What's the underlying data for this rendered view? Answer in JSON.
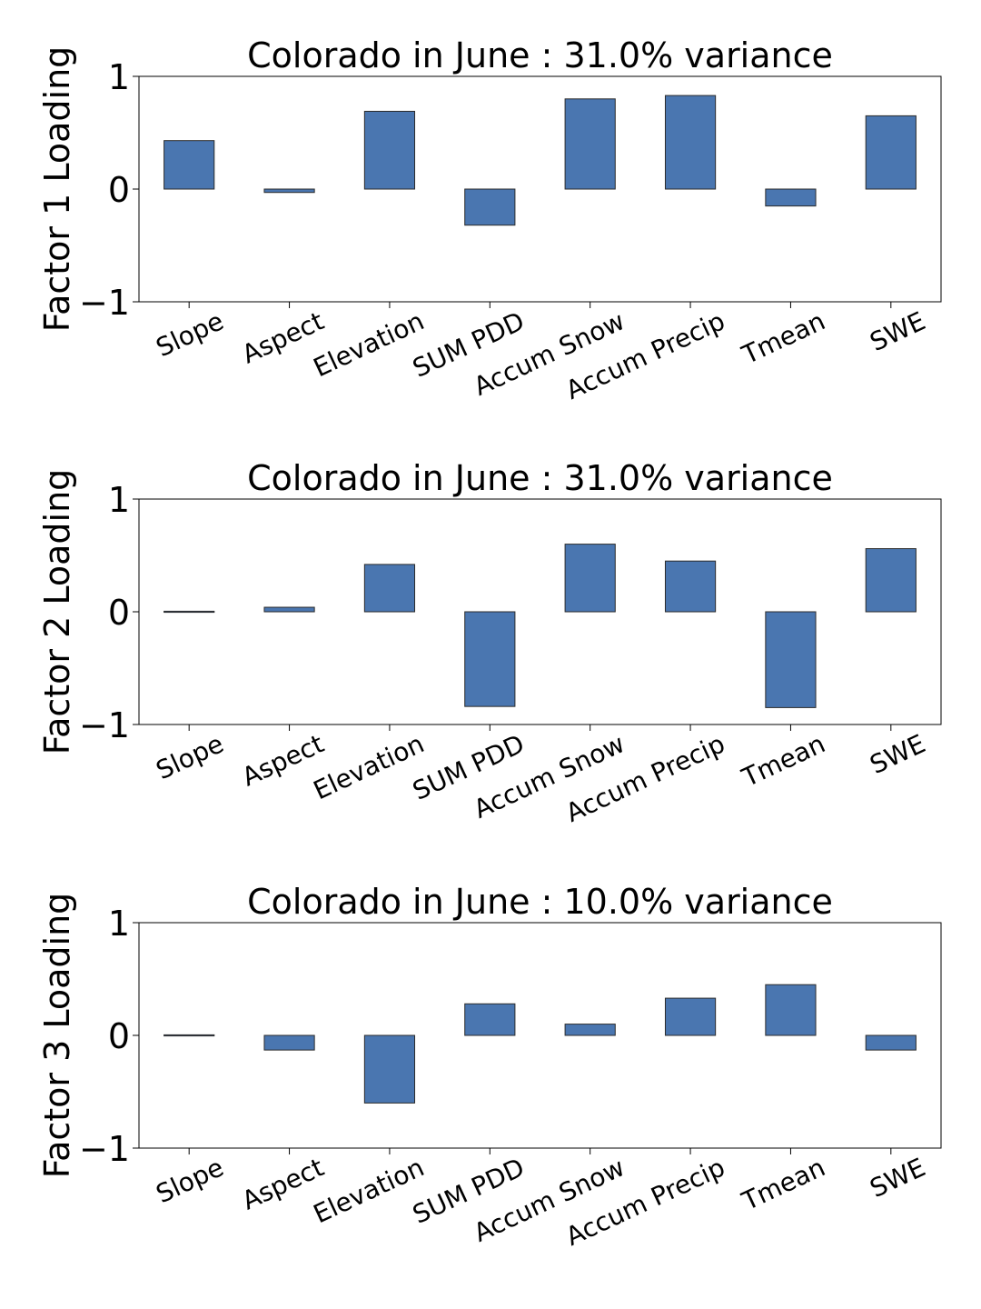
{
  "chart_data": [
    {
      "type": "bar",
      "title": "Colorado in June : 31.0% variance",
      "xlabel": "",
      "ylabel": "Factor 1 Loading",
      "ylim": [
        -1,
        1
      ],
      "yticks": [
        "−1",
        "0",
        "1"
      ],
      "categories": [
        "Slope",
        "Aspect",
        "Elevation",
        "SUM PDD",
        "Accum Snow",
        "Accum Precip",
        "Tmean",
        "SWE"
      ],
      "values": [
        0.43,
        -0.03,
        0.69,
        -0.32,
        0.8,
        0.83,
        -0.15,
        0.65
      ],
      "grid": false,
      "bar_color": "#4a76b0",
      "edge_color": "#2b2b2b"
    },
    {
      "type": "bar",
      "title": "Colorado in June : 31.0% variance",
      "xlabel": "",
      "ylabel": "Factor 2 Loading",
      "ylim": [
        -1,
        1
      ],
      "yticks": [
        "−1",
        "0",
        "1"
      ],
      "categories": [
        "Slope",
        "Aspect",
        "Elevation",
        "SUM PDD",
        "Accum Snow",
        "Accum Precip",
        "Tmean",
        "SWE"
      ],
      "values": [
        0.005,
        0.04,
        0.42,
        -0.84,
        0.6,
        0.45,
        -0.85,
        0.56
      ],
      "grid": false,
      "bar_color": "#4a76b0",
      "edge_color": "#2b2b2b"
    },
    {
      "type": "bar",
      "title": "Colorado in June : 10.0% variance",
      "xlabel": "",
      "ylabel": "Factor 3 Loading",
      "ylim": [
        -1,
        1
      ],
      "yticks": [
        "−1",
        "0",
        "1"
      ],
      "categories": [
        "Slope",
        "Aspect",
        "Elevation",
        "SUM PDD",
        "Accum Snow",
        "Accum Precip",
        "Tmean",
        "SWE"
      ],
      "values": [
        0.005,
        -0.13,
        -0.6,
        0.28,
        0.1,
        0.33,
        0.45,
        -0.13
      ],
      "grid": false,
      "bar_color": "#4a76b0",
      "edge_color": "#2b2b2b"
    }
  ]
}
